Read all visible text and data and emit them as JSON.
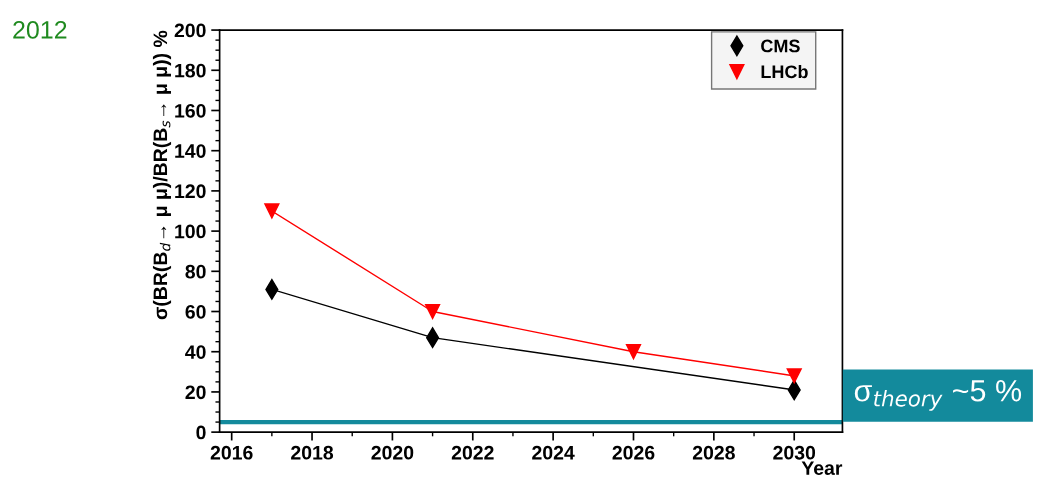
{
  "chart_data": {
    "type": "line",
    "xlabel": "Year",
    "ylabel": "σ(BR(B$_{d}$→ μ μ)/BR(B$_{s}$→ μ μ)) %",
    "series": [
      {
        "name": "CMS",
        "color": "#000000",
        "marker": "diamond",
        "x": [
          2017,
          2021,
          2030
        ],
        "values": [
          71,
          47,
          21
        ]
      },
      {
        "name": "LHCb",
        "color": "#ff0000",
        "marker": "triangle",
        "x": [
          2017,
          2021,
          2026,
          2030
        ],
        "values": [
          110,
          60,
          40,
          28
        ]
      }
    ],
    "xlim": [
      2015.7,
      2031.2
    ],
    "xticks": [
      2016,
      2018,
      2020,
      2022,
      2024,
      2026,
      2028,
      2030
    ],
    "ylim": [
      0,
      200
    ],
    "yticks": [
      0,
      20,
      40,
      60,
      80,
      100,
      120,
      140,
      160,
      180,
      200
    ],
    "ref_lines": [
      {
        "axis": "y",
        "value": 5,
        "label": "σ$_{theory}$ ~5 %",
        "color": "#138a9c"
      }
    ],
    "annotations": [
      "2012"
    ],
    "legend": "top right",
    "grid": false,
    "line_style": "solid"
  }
}
